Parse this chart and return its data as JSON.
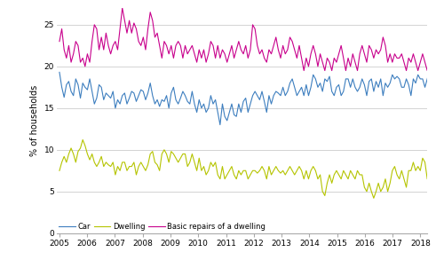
{
  "title": "",
  "ylabel": "% of households",
  "xlim_start": 2005.0,
  "xlim_end": 2018.25,
  "ylim": [
    0,
    27
  ],
  "yticks": [
    0,
    5,
    10,
    15,
    20,
    25
  ],
  "xtick_years": [
    2005,
    2006,
    2007,
    2008,
    2009,
    2010,
    2011,
    2012,
    2013,
    2014,
    2015,
    2016,
    2017,
    2018
  ],
  "car_color": "#3d7ebf",
  "dwelling_color": "#b5c400",
  "repairs_color": "#c8008c",
  "line_width": 0.8,
  "legend_labels": [
    "Car",
    "Dwelling",
    "Basic repairs of a dwelling"
  ],
  "background_color": "#ffffff",
  "grid_color": "#cccccc",
  "car": [
    19.3,
    17.5,
    16.3,
    17.8,
    18.2,
    17.0,
    16.5,
    18.5,
    17.8,
    16.2,
    18.0,
    17.5,
    17.2,
    18.5,
    17.0,
    15.5,
    16.2,
    17.8,
    17.5,
    16.0,
    16.8,
    16.5,
    16.2,
    17.0,
    15.0,
    16.0,
    15.5,
    16.5,
    16.8,
    15.5,
    16.2,
    17.0,
    16.8,
    15.8,
    16.5,
    17.2,
    17.0,
    16.0,
    16.8,
    18.0,
    16.5,
    15.5,
    16.0,
    15.2,
    16.0,
    15.8,
    16.5,
    15.0,
    16.8,
    17.5,
    16.0,
    15.5,
    16.2,
    17.0,
    16.5,
    15.8,
    15.5,
    17.0,
    15.5,
    14.5,
    16.0,
    15.0,
    15.5,
    14.5,
    15.0,
    16.5,
    15.5,
    16.0,
    14.5,
    13.0,
    15.5,
    14.0,
    13.5,
    14.5,
    15.5,
    14.2,
    14.0,
    15.5,
    14.5,
    15.8,
    16.2,
    14.5,
    15.5,
    16.5,
    17.0,
    16.5,
    16.0,
    17.0,
    15.8,
    14.5,
    16.5,
    15.5,
    16.5,
    17.0,
    16.8,
    16.5,
    17.5,
    16.5,
    17.0,
    18.0,
    18.5,
    17.5,
    16.5,
    17.0,
    17.5,
    16.5,
    17.8,
    16.5,
    17.5,
    19.0,
    18.5,
    17.5,
    18.0,
    17.0,
    18.5,
    18.2,
    18.8,
    17.0,
    16.5,
    17.5,
    17.8,
    16.5,
    17.0,
    18.5,
    18.5,
    17.5,
    18.5,
    17.5,
    17.0,
    17.5,
    18.5,
    17.8,
    16.5,
    18.2,
    18.5,
    17.0,
    18.2,
    17.5,
    18.5,
    16.5,
    18.0,
    17.5,
    18.0,
    19.0,
    18.5,
    18.8,
    18.5,
    17.5,
    17.5,
    18.5,
    17.8,
    16.5,
    18.5,
    18.0,
    19.0,
    18.5,
    18.5,
    17.5,
    18.5,
    19.5
  ],
  "dwelling": [
    7.5,
    8.5,
    9.2,
    8.5,
    9.5,
    10.2,
    9.5,
    8.5,
    9.8,
    10.2,
    11.2,
    10.5,
    9.5,
    8.8,
    9.5,
    8.5,
    8.0,
    8.5,
    9.2,
    8.0,
    8.5,
    8.2,
    8.0,
    8.5,
    7.0,
    8.0,
    7.5,
    8.5,
    8.5,
    7.5,
    8.0,
    8.0,
    8.5,
    7.0,
    8.0,
    8.5,
    8.0,
    7.5,
    8.2,
    9.5,
    9.8,
    8.5,
    8.2,
    7.5,
    9.5,
    10.0,
    9.5,
    8.5,
    9.8,
    9.5,
    9.0,
    8.5,
    9.0,
    9.5,
    9.5,
    8.0,
    8.5,
    9.5,
    8.5,
    7.5,
    9.0,
    7.5,
    8.0,
    7.0,
    7.5,
    8.5,
    8.0,
    8.5,
    7.0,
    6.5,
    8.0,
    6.5,
    7.0,
    7.5,
    8.0,
    7.0,
    6.5,
    7.5,
    7.0,
    7.5,
    7.5,
    6.5,
    7.0,
    7.5,
    7.5,
    7.2,
    7.5,
    8.0,
    7.5,
    6.5,
    8.0,
    7.0,
    7.5,
    8.0,
    7.5,
    7.2,
    7.5,
    7.0,
    7.5,
    8.0,
    7.5,
    7.0,
    7.5,
    8.0,
    7.5,
    6.5,
    7.5,
    6.5,
    7.5,
    8.0,
    7.5,
    6.5,
    7.0,
    5.0,
    4.5,
    6.0,
    7.0,
    6.0,
    7.0,
    7.5,
    7.0,
    6.5,
    7.5,
    7.0,
    6.5,
    7.5,
    7.0,
    6.5,
    7.5,
    7.0,
    7.0,
    5.5,
    5.0,
    6.0,
    5.0,
    4.2,
    5.0,
    6.0,
    5.0,
    5.5,
    6.5,
    5.0,
    6.0,
    7.5,
    8.0,
    7.0,
    6.5,
    7.5,
    6.5,
    5.5,
    7.5,
    7.5,
    8.5,
    7.5,
    8.0,
    7.5,
    9.0,
    8.5,
    6.5,
    7.0
  ],
  "repairs": [
    23.0,
    24.5,
    22.0,
    21.0,
    22.5,
    20.5,
    21.5,
    23.0,
    22.5,
    20.5,
    21.0,
    20.0,
    21.5,
    20.5,
    23.0,
    25.0,
    24.5,
    22.0,
    23.5,
    22.0,
    24.0,
    22.5,
    21.5,
    22.5,
    23.0,
    22.0,
    24.5,
    27.0,
    25.5,
    24.0,
    25.5,
    24.0,
    25.2,
    24.5,
    23.0,
    22.5,
    23.5,
    22.0,
    24.5,
    26.5,
    25.5,
    23.5,
    24.0,
    22.5,
    21.0,
    23.0,
    22.5,
    21.5,
    22.5,
    21.0,
    22.5,
    23.0,
    22.5,
    21.0,
    22.5,
    21.5,
    22.0,
    22.5,
    21.5,
    20.5,
    22.0,
    21.0,
    22.0,
    20.5,
    21.5,
    23.0,
    22.5,
    21.0,
    22.5,
    21.0,
    22.0,
    21.5,
    20.5,
    21.5,
    22.5,
    21.0,
    22.0,
    23.0,
    22.0,
    21.5,
    22.5,
    21.0,
    22.0,
    25.0,
    24.5,
    22.5,
    21.5,
    22.0,
    21.0,
    20.5,
    22.0,
    21.5,
    22.5,
    23.5,
    22.0,
    21.0,
    22.5,
    21.5,
    22.0,
    23.5,
    23.0,
    22.0,
    21.0,
    22.5,
    21.0,
    19.5,
    21.0,
    20.0,
    21.5,
    22.5,
    21.5,
    20.0,
    21.5,
    20.5,
    19.5,
    21.0,
    20.5,
    19.5,
    21.0,
    20.5,
    21.5,
    22.5,
    21.0,
    19.5,
    21.0,
    20.0,
    21.5,
    20.5,
    19.5,
    21.5,
    22.5,
    21.5,
    20.5,
    22.5,
    22.0,
    21.0,
    22.0,
    21.5,
    22.0,
    23.5,
    22.5,
    20.5,
    21.5,
    20.5,
    21.5,
    21.0,
    21.0,
    21.5,
    20.5,
    19.5,
    21.0,
    20.5,
    21.5,
    20.5,
    19.5,
    20.5,
    21.5,
    20.5,
    19.5,
    21.5
  ]
}
